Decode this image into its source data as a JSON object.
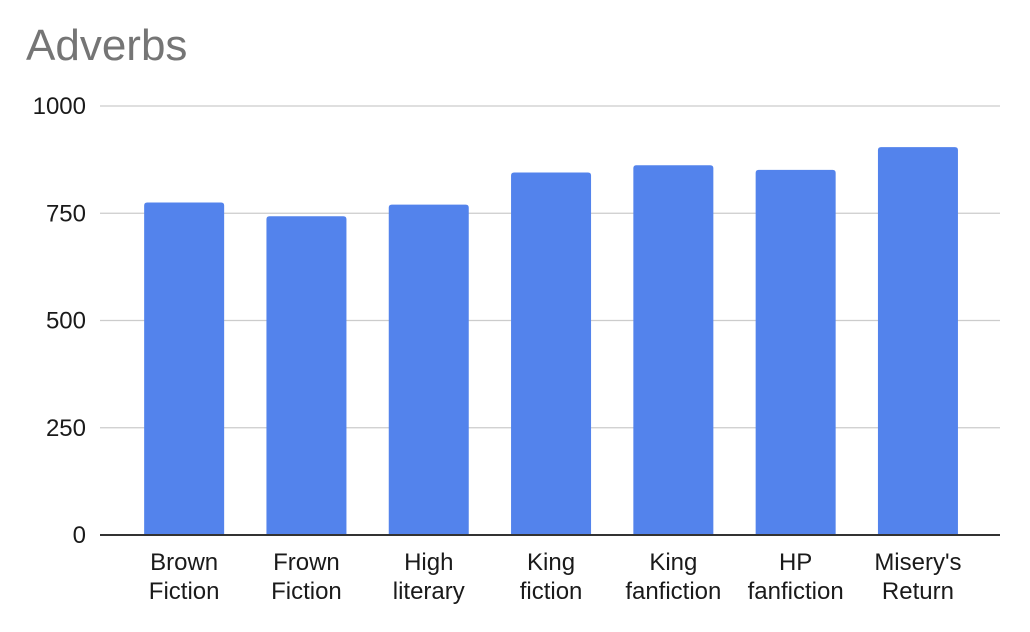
{
  "chart_data": {
    "type": "bar",
    "title": "Adverbs",
    "xlabel": "",
    "ylabel": "",
    "categories": [
      [
        "Brown",
        "Fiction"
      ],
      [
        "Frown",
        "Fiction"
      ],
      [
        "High",
        "literary"
      ],
      [
        "King",
        "fiction"
      ],
      [
        "King",
        "fanfiction"
      ],
      [
        "HP",
        "fanfiction"
      ],
      [
        "Misery's",
        "Return"
      ]
    ],
    "values": [
      775,
      743,
      770,
      845,
      862,
      851,
      904
    ],
    "ylim": [
      0,
      1000
    ],
    "yticks": [
      0,
      250,
      500,
      750,
      1000
    ],
    "grid": true,
    "legend": "none",
    "colors": {
      "bar": "#5383EC",
      "grid": "#CCCCCC",
      "axis": "#333333",
      "title": "#757575",
      "text": "#1A1A1A"
    }
  }
}
